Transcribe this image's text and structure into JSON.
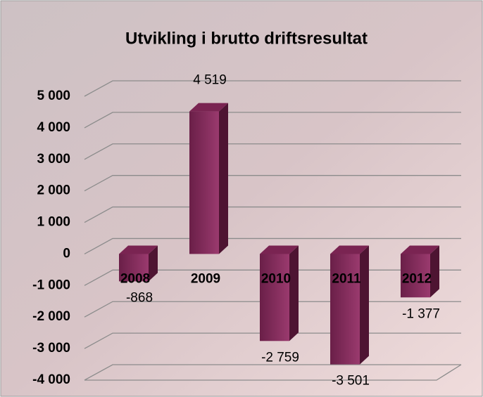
{
  "chart_data": {
    "type": "bar3d",
    "title": "Utvikling i brutto driftsresultat",
    "categories": [
      "2008",
      "2009",
      "2010",
      "2011",
      "2012"
    ],
    "values": [
      -868,
      4519,
      -2759,
      -3501,
      -1377
    ],
    "value_labels": [
      "-868",
      "4 519",
      "-2 759",
      "-3 501",
      "-1 377"
    ],
    "color": "#8e2f63",
    "ylim": [
      -4000,
      5000
    ],
    "yticks": [
      {
        "value": -4000,
        "label": "-4 000"
      },
      {
        "value": -3000,
        "label": "-3 000"
      },
      {
        "value": -2000,
        "label": "-2 000"
      },
      {
        "value": -1000,
        "label": "-1 000"
      },
      0,
      {
        "value": 1000,
        "label": "1 000"
      },
      {
        "value": 2000,
        "label": "2 000"
      },
      {
        "value": 3000,
        "label": "3 000"
      },
      {
        "value": 4000,
        "label": "4 000"
      },
      {
        "value": 5000,
        "label": "5 000"
      }
    ],
    "grid": true
  }
}
